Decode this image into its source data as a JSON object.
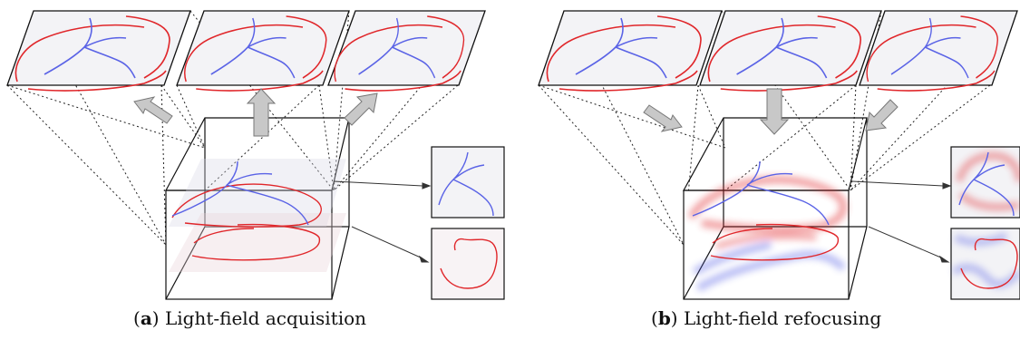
{
  "figure": {
    "panels": [
      {
        "id": "a",
        "letter": "a",
        "caption": "Light-field acquisition",
        "arrow_direction": "outward"
      },
      {
        "id": "b",
        "letter": "b",
        "caption": "Light-field refocusing",
        "arrow_direction": "inward"
      }
    ],
    "colors": {
      "red_curve": "#e0262a",
      "blue_curve": "#5a63e6",
      "arrow_fill": "#c8c8c8",
      "plane_fill": "#f3f3f6",
      "line": "#111111"
    }
  }
}
